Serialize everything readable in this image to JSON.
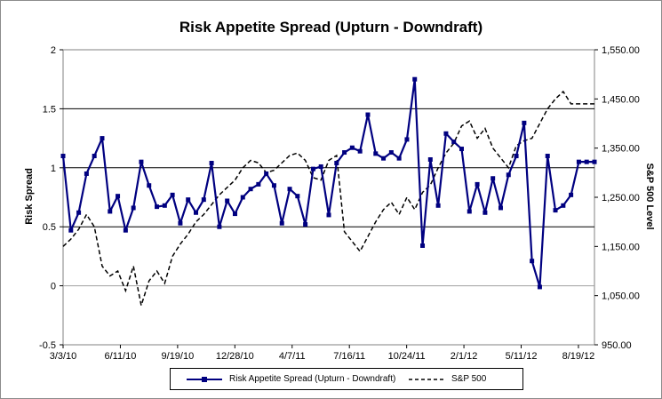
{
  "chart_data": {
    "type": "line",
    "title": "Risk Appetite Spread (Upturn - Downdraft)",
    "ylabel": "Risk Spread",
    "y2label": "S&P 500 Level",
    "xlabel": "",
    "x_tick_labels": [
      "3/3/10",
      "6/11/10",
      "9/19/10",
      "12/28/10",
      "4/7/11",
      "7/16/11",
      "10/24/11",
      "2/1/12",
      "5/11/12",
      "8/19/12"
    ],
    "y_ticks": [
      "-0.5",
      "0",
      "0.5",
      "1",
      "1.5",
      "2"
    ],
    "y2_ticks": [
      "950.00",
      "1,050.00",
      "1,150.00",
      "1,250.00",
      "1,350.00",
      "1,450.00",
      "1,550.00"
    ],
    "ylim": [
      -0.5,
      2
    ],
    "y2lim": [
      950,
      1550
    ],
    "x_start": "2010-03-03",
    "x_end": "2012-10-10",
    "x": [
      "2010-03-03",
      "2010-03-17",
      "2010-03-31",
      "2010-04-14",
      "2010-04-28",
      "2010-05-12",
      "2010-05-26",
      "2010-06-09",
      "2010-06-23",
      "2010-07-07",
      "2010-07-21",
      "2010-08-04",
      "2010-08-18",
      "2010-09-01",
      "2010-09-15",
      "2010-09-29",
      "2010-10-13",
      "2010-10-27",
      "2010-11-10",
      "2010-11-24",
      "2010-12-08",
      "2010-12-22",
      "2011-01-05",
      "2011-01-19",
      "2011-02-02",
      "2011-02-16",
      "2011-03-02",
      "2011-03-16",
      "2011-03-30",
      "2011-04-13",
      "2011-04-27",
      "2011-05-11",
      "2011-05-25",
      "2011-06-08",
      "2011-06-22",
      "2011-07-06",
      "2011-07-20",
      "2011-08-03",
      "2011-08-17",
      "2011-08-31",
      "2011-09-14",
      "2011-09-28",
      "2011-10-12",
      "2011-10-26",
      "2011-11-09",
      "2011-11-23",
      "2011-12-07",
      "2011-12-21",
      "2012-01-04",
      "2012-01-18",
      "2012-02-01",
      "2012-02-15",
      "2012-02-29",
      "2012-03-14",
      "2012-03-28",
      "2012-04-11",
      "2012-04-25",
      "2012-05-09",
      "2012-05-23",
      "2012-06-06",
      "2012-06-20",
      "2012-07-04",
      "2012-07-18",
      "2012-08-01",
      "2012-08-15",
      "2012-08-29",
      "2012-09-12",
      "2012-09-26",
      "2012-10-10"
    ],
    "series": [
      {
        "name": "Risk Appetite Spread (Upturn - Downdraft)",
        "axis": "left",
        "color": "#000080",
        "marker": "square",
        "values": [
          1.1,
          0.47,
          0.62,
          0.95,
          1.1,
          1.25,
          0.63,
          0.76,
          0.47,
          0.66,
          1.05,
          0.85,
          0.67,
          0.68,
          0.77,
          0.53,
          0.73,
          0.62,
          0.73,
          1.04,
          0.5,
          0.72,
          0.61,
          0.75,
          0.82,
          0.86,
          0.95,
          0.85,
          0.53,
          0.82,
          0.76,
          0.52,
          0.99,
          1.01,
          0.6,
          1.04,
          1.13,
          1.17,
          1.14,
          1.45,
          1.12,
          1.08,
          1.13,
          1.08,
          1.24,
          1.75,
          0.34,
          1.07,
          0.68,
          1.29,
          1.22,
          1.16,
          0.63,
          0.86,
          0.62,
          0.91,
          0.66,
          0.94,
          1.1,
          1.38,
          0.21,
          -0.01,
          1.1,
          0.64,
          0.68,
          0.77,
          1.05,
          1.05,
          1.05
        ]
      },
      {
        "name": "S&P 500",
        "axis": "right",
        "color": "#000000",
        "dash": "dashed",
        "values": [
          1150,
          1165,
          1185,
          1215,
          1190,
          1110,
          1090,
          1100,
          1060,
          1110,
          1030,
          1080,
          1100,
          1075,
          1130,
          1155,
          1175,
          1200,
          1215,
          1235,
          1255,
          1270,
          1285,
          1310,
          1325,
          1320,
          1300,
          1305,
          1320,
          1335,
          1340,
          1325,
          1290,
          1285,
          1325,
          1335,
          1180,
          1160,
          1140,
          1170,
          1200,
          1225,
          1240,
          1215,
          1250,
          1225,
          1260,
          1275,
          1310,
          1340,
          1360,
          1395,
          1405,
          1370,
          1390,
          1350,
          1330,
          1310,
          1355,
          1365,
          1370,
          1400,
          1430,
          1450,
          1465,
          1440,
          1440,
          1440,
          1440
        ]
      }
    ],
    "gridlines": "horizontal at 0.5, 1, 1.5; grey at 0",
    "legend_position": "bottom"
  }
}
